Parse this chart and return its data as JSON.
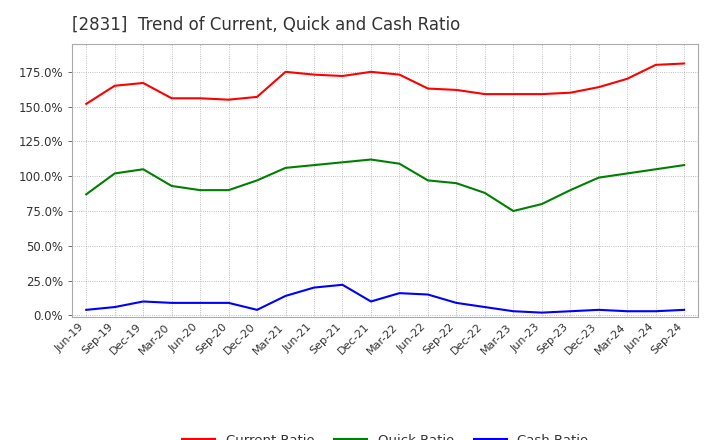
{
  "title": "[2831]  Trend of Current, Quick and Cash Ratio",
  "title_fontsize": 12,
  "title_color": "#333333",
  "x_labels": [
    "Jun-19",
    "Sep-19",
    "Dec-19",
    "Mar-20",
    "Jun-20",
    "Sep-20",
    "Dec-20",
    "Mar-21",
    "Jun-21",
    "Sep-21",
    "Dec-21",
    "Mar-22",
    "Jun-22",
    "Sep-22",
    "Dec-22",
    "Mar-23",
    "Jun-23",
    "Sep-23",
    "Dec-23",
    "Mar-24",
    "Jun-24",
    "Sep-24"
  ],
  "current_ratio": [
    1.52,
    1.65,
    1.67,
    1.56,
    1.56,
    1.55,
    1.57,
    1.75,
    1.73,
    1.72,
    1.75,
    1.73,
    1.63,
    1.62,
    1.59,
    1.59,
    1.59,
    1.6,
    1.64,
    1.7,
    1.8,
    1.81
  ],
  "quick_ratio": [
    0.87,
    1.02,
    1.05,
    0.93,
    0.9,
    0.9,
    0.97,
    1.06,
    1.08,
    1.1,
    1.12,
    1.09,
    0.97,
    0.95,
    0.88,
    0.75,
    0.8,
    0.9,
    0.99,
    1.02,
    1.05,
    1.08
  ],
  "cash_ratio": [
    0.04,
    0.06,
    0.1,
    0.09,
    0.09,
    0.09,
    0.04,
    0.14,
    0.2,
    0.22,
    0.1,
    0.16,
    0.15,
    0.09,
    0.06,
    0.03,
    0.02,
    0.03,
    0.04,
    0.03,
    0.03,
    0.04
  ],
  "current_color": "#ff0000",
  "quick_color": "#008000",
  "cash_color": "#0000ff",
  "ylim_min": -0.01,
  "ylim_max": 1.95,
  "yticks": [
    0.0,
    0.25,
    0.5,
    0.75,
    1.0,
    1.25,
    1.5,
    1.75
  ],
  "background_color": "#ffffff",
  "plot_bg_color": "#ffffff",
  "grid_color": "#aaaaaa",
  "legend_labels": [
    "Current Ratio",
    "Quick Ratio",
    "Cash Ratio"
  ]
}
